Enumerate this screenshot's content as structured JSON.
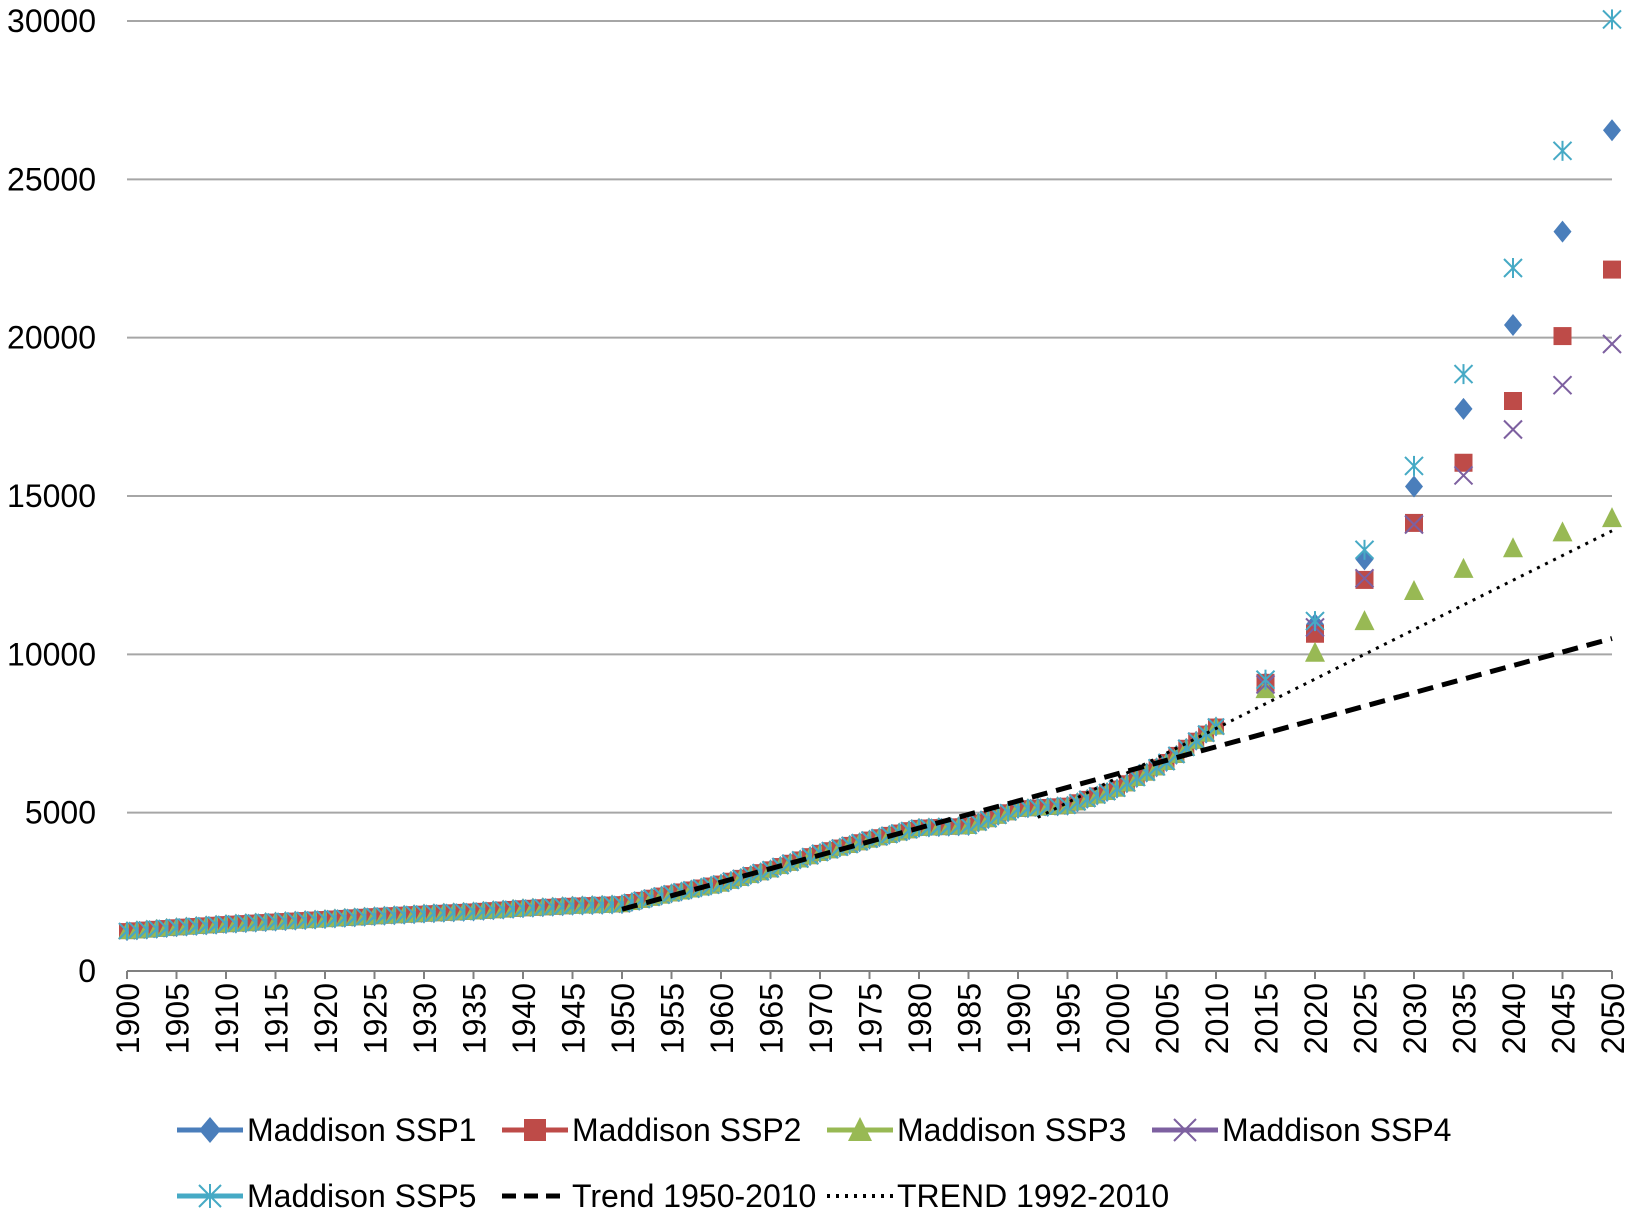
{
  "chart_data": {
    "type": "line",
    "title": "",
    "xlabel": "",
    "ylabel": "",
    "ylim": [
      0,
      30000
    ],
    "yticks": [
      0,
      5000,
      10000,
      15000,
      20000,
      25000,
      30000
    ],
    "xlim": [
      1900,
      2050
    ],
    "xticks": [
      1900,
      1905,
      1910,
      1915,
      1920,
      1925,
      1930,
      1935,
      1940,
      1945,
      1950,
      1955,
      1960,
      1965,
      1970,
      1975,
      1980,
      1985,
      1990,
      1995,
      2000,
      2005,
      2010,
      2015,
      2020,
      2025,
      2030,
      2035,
      2040,
      2045,
      2050
    ],
    "grid": "horizontal",
    "legend_position": "bottom",
    "historical": {
      "years": [
        1900,
        1905,
        1910,
        1915,
        1920,
        1925,
        1930,
        1935,
        1940,
        1945,
        1950,
        1955,
        1960,
        1965,
        1970,
        1975,
        1980,
        1985,
        1990,
        1995,
        2000,
        2005,
        2010
      ],
      "values": [
        1260,
        1380,
        1480,
        1560,
        1640,
        1730,
        1810,
        1880,
        1980,
        2060,
        2110,
        2450,
        2760,
        3210,
        3730,
        4150,
        4520,
        4580,
        5120,
        5220,
        5760,
        6600,
        7720
      ]
    },
    "series": [
      {
        "name": "Maddison SSP1",
        "color": "#4a7ebb",
        "marker": "diamond",
        "x": [
          2015,
          2020,
          2025,
          2030,
          2035,
          2040,
          2045,
          2050
        ],
        "values": [
          9100,
          10950,
          13000,
          15300,
          17750,
          20400,
          23350,
          26550
        ]
      },
      {
        "name": "Maddison SSP2",
        "color": "#be4b48",
        "marker": "square",
        "x": [
          2015,
          2020,
          2025,
          2030,
          2035,
          2040,
          2045,
          2050
        ],
        "values": [
          9100,
          10650,
          12350,
          14150,
          16050,
          18000,
          20050,
          22150
        ]
      },
      {
        "name": "Maddison SSP3",
        "color": "#98b954",
        "marker": "triangle",
        "x": [
          2015,
          2020,
          2025,
          2030,
          2035,
          2040,
          2045,
          2050
        ],
        "values": [
          8900,
          10050,
          11050,
          12000,
          12700,
          13350,
          13850,
          14300
        ]
      },
      {
        "name": "Maddison SSP4",
        "color": "#7d60a0",
        "marker": "x",
        "x": [
          2015,
          2020,
          2025,
          2030,
          2035,
          2040,
          2045,
          2050
        ],
        "values": [
          9050,
          10850,
          12400,
          14100,
          15650,
          17100,
          18500,
          19800
        ]
      },
      {
        "name": "Maddison SSP5",
        "color": "#46aac5",
        "marker": "star",
        "x": [
          2015,
          2020,
          2025,
          2030,
          2035,
          2040,
          2045,
          2050
        ],
        "values": [
          9200,
          11050,
          13300,
          15950,
          18850,
          22200,
          25900,
          30050
        ]
      },
      {
        "name": "Trend 1950-2010",
        "color": "#000000",
        "style": "dashed",
        "x": [
          1950,
          2050
        ],
        "values": [
          1950,
          10500
        ]
      },
      {
        "name": "TREND 1992-2010",
        "color": "#000000",
        "style": "dotted",
        "x": [
          1992,
          2050
        ],
        "values": [
          4850,
          13900
        ]
      }
    ]
  }
}
